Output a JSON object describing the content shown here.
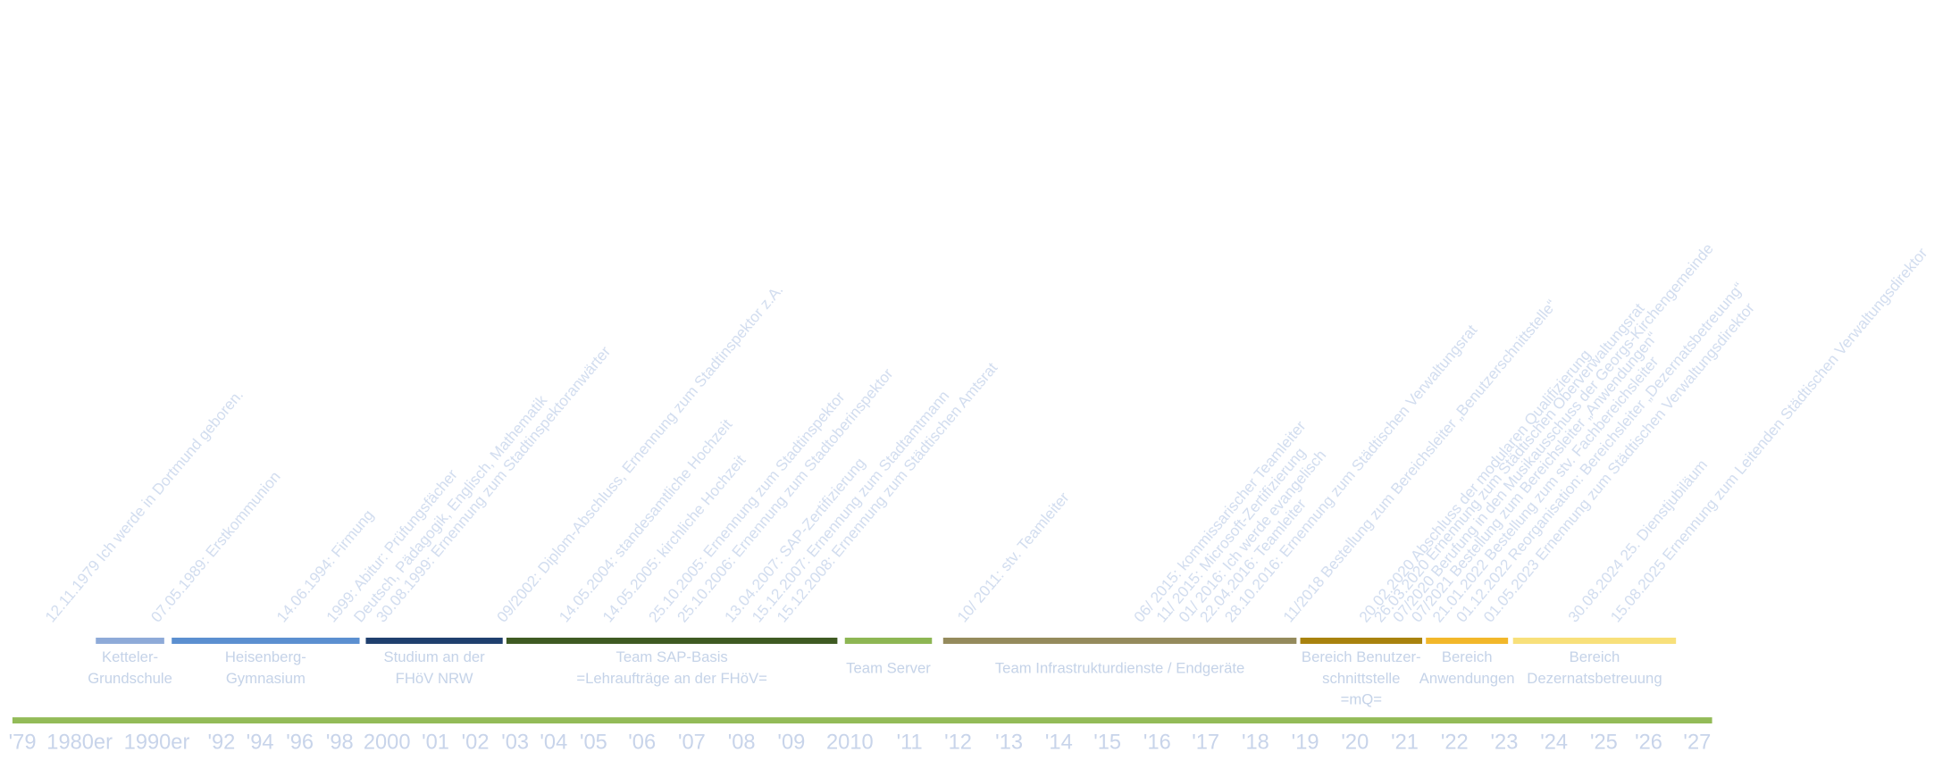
{
  "axis_labels": [
    "'79",
    "1980er",
    "1990er",
    "'92",
    "'94",
    "'96",
    "'98",
    "2000",
    "'01",
    "'02",
    "'03",
    "'04",
    "'05",
    "'06",
    "'07",
    "'08",
    "'09",
    "2010",
    "'11",
    "'12",
    "'13",
    "'14",
    "'15",
    "'16",
    "'17",
    "'18",
    "'19",
    "'20",
    "'21",
    "'22",
    "'23",
    "'24",
    "'25",
    "'26",
    "'27"
  ],
  "phases": [
    {
      "lines": [
        "Ketteler-",
        "Grundschule"
      ],
      "color": "#8eaad8"
    },
    {
      "lines": [
        "Heisenberg-",
        "Gymnasium"
      ],
      "color": "#5b8fd0"
    },
    {
      "lines": [
        "Studium an der",
        "FHöV NRW"
      ],
      "color": "#1f3f6e"
    },
    {
      "lines": [
        "Team SAP-Basis",
        "=Lehraufträge an der FHöV="
      ],
      "color": "#3e5a22"
    },
    {
      "lines": [
        "Team Server"
      ],
      "color": "#8db653"
    },
    {
      "lines": [
        "Team Infrastrukturdienste / Endgeräte"
      ],
      "color": "#948a5c"
    },
    {
      "lines": [
        "Bereich Benutzer-",
        "schnittstelle",
        "=mQ="
      ],
      "color": "#a8820e"
    },
    {
      "lines": [
        "Bereich",
        "Anwendungen"
      ],
      "color": "#f2b72a"
    },
    {
      "lines": [
        "Bereich",
        "Dezernatsbetreuung"
      ],
      "color": "#f8e07a"
    }
  ],
  "events": [
    "12.11.1979 Ich werde in Dortmund geboren.",
    "07.05.1989: Erstkommunion",
    "14.06.1994: Firmung",
    "1999: Abitur: Prüfungsfächer",
    "Deutsch, Pädagogik, Englisch, Mathematik",
    "30.08.1999: Ernennung zum Stadtinspektoranwärter",
    "09/2002: Diplom-Abschluss, Ernennung zum Stadtinspektor z.A.",
    "14.05.2004: standesamtliche Hochzeit",
    "14.05.2005: kirchliche Hochzeit",
    "25.10.2005: Ernennung zum Stadtinspektor",
    "25.10.2006: Ernennung zum Stadtoberinspektor",
    "13.04.2007: SAP-Zertifizierung",
    "15.12.2007: Ernennung zum Stadtamtmann",
    "15.12.2008: Ernennung zum Städtischen Amtsrat",
    "10/ 2011: stv. Teamleiter",
    "06/ 2015: kommissarischer Teamleiter",
    "11/ 2015: Microsoft-Zertifizierung",
    "01/ 2016: Ich werde evangelisch",
    "22.04.2016: Teamleiter",
    "28.10.2016: Ernennung zum Städtischen Verwaltungsrat",
    "11/2018 Bestellung zum Bereichsleiter „Benutzerschnittstelle“",
    "20.02.2020 Abschluss der modularen Qualifizierung",
    "26.03.2020 Ernennung zum Städtischen Oberverwaltungsrat",
    "07/2020 Berufung in den Musikausschuss der Georgs-Kirchengemeinde",
    "07/2021 Bestellung zum Bereichsleiter „Anwendungen“",
    "21.01.2022 Bestellung zum stv. Fachbereichsleiter",
    "01.12.2022 Reorganisation: Bereichsleiter „Dezernatsbetreuung“",
    "01.05.2023 Ernennung zum Städtischen Verwaltungsdirektor",
    "30.08.2024 25. Dienstjubiläum",
    "15.08.2025 Ernennung zum Leitenden Städtischen Verwaltungsdirektor"
  ]
}
